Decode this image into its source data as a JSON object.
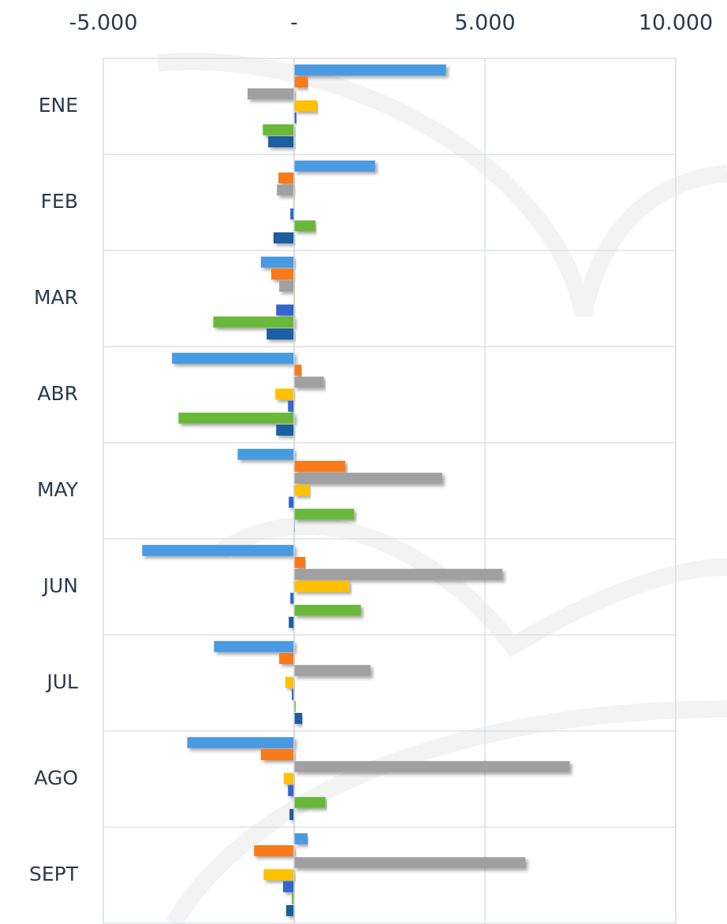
{
  "chart_data": {
    "type": "hbar",
    "categories": [
      "ENE",
      "FEB",
      "MAR",
      "ABR",
      "MAY",
      "JUN",
      "JUL",
      "AGO",
      "SEPT"
    ],
    "series": [
      {
        "color": "#4a9ae0",
        "values": [
          3980,
          2120,
          -870,
          -3200,
          -1480,
          -3980,
          -2100,
          -2800,
          350
        ]
      },
      {
        "color": "#f97a1e",
        "values": [
          350,
          -410,
          -600,
          190,
          1340,
          290,
          -390,
          -870,
          -1050
        ]
      },
      {
        "color": "#a0a0a0",
        "values": [
          -1220,
          -450,
          -390,
          780,
          3880,
          5460,
          2000,
          7220,
          6060
        ]
      },
      {
        "color": "#ffc000",
        "values": [
          600,
          -20,
          20,
          -490,
          410,
          1440,
          -230,
          -270,
          -800
        ]
      },
      {
        "color": "#3366cc",
        "values": [
          60,
          -100,
          -470,
          -160,
          -140,
          -100,
          -60,
          -160,
          -290
        ]
      },
      {
        "color": "#6bb83a",
        "values": [
          -820,
          560,
          -2120,
          -3030,
          1570,
          1750,
          40,
          820,
          -60
        ]
      },
      {
        "color": "#1f5fa0",
        "values": [
          -680,
          -540,
          -720,
          -470,
          20,
          -140,
          210,
          -120,
          -210
        ]
      }
    ],
    "xlim": [
      -5000,
      10000
    ],
    "xticks": [
      {
        "value": -5000,
        "label": "-5.000"
      },
      {
        "value": 0,
        "label": "-"
      },
      {
        "value": 5000,
        "label": "5.000"
      },
      {
        "value": 10000,
        "label": "10.000"
      }
    ],
    "grid": true
  }
}
